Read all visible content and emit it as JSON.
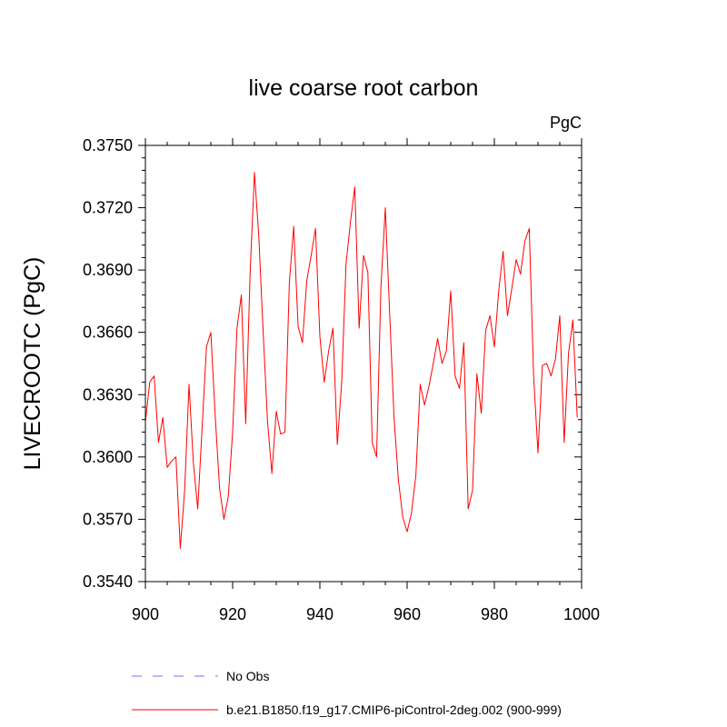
{
  "chart_data": {
    "type": "line",
    "title": "live coarse root carbon",
    "units": "PgC",
    "ylabel": "LIVECROOTC  (PgC)",
    "xlabel": "",
    "xlim": [
      900,
      1000
    ],
    "ylim": [
      0.354,
      0.375
    ],
    "x_ticks": [
      900,
      920,
      940,
      960,
      980,
      1000
    ],
    "x_tick_labels": [
      "900",
      "920",
      "940",
      "960",
      "980",
      "1000"
    ],
    "y_ticks": [
      0.354,
      0.357,
      0.36,
      0.363,
      0.366,
      0.369,
      0.372,
      0.375
    ],
    "y_tick_labels": [
      "0.3540",
      "0.3570",
      "0.3600",
      "0.3630",
      "0.3660",
      "0.3690",
      "0.3720",
      "0.3750"
    ],
    "legend": [
      {
        "label": "No Obs",
        "color": "#7070ff",
        "style": "dashed"
      },
      {
        "label": "b.e21.B1850.f19_g17.CMIP6-piControl-2deg.002 (900-999)",
        "color": "#ff0000",
        "style": "solid"
      }
    ],
    "series": [
      {
        "name": "b.e21.B1850.f19_g17.CMIP6-piControl-2deg.002 (900-999)",
        "color": "#ff0000",
        "x": [
          900,
          901,
          902,
          903,
          904,
          905,
          906,
          907,
          908,
          909,
          910,
          911,
          912,
          913,
          914,
          915,
          916,
          917,
          918,
          919,
          920,
          921,
          922,
          923,
          924,
          925,
          926,
          927,
          928,
          929,
          930,
          931,
          932,
          933,
          934,
          935,
          936,
          937,
          938,
          939,
          940,
          941,
          942,
          943,
          944,
          945,
          946,
          947,
          948,
          949,
          950,
          951,
          952,
          953,
          954,
          955,
          956,
          957,
          958,
          959,
          960,
          961,
          962,
          963,
          964,
          965,
          966,
          967,
          968,
          969,
          970,
          971,
          972,
          973,
          974,
          975,
          976,
          977,
          978,
          979,
          980,
          981,
          982,
          983,
          984,
          985,
          986,
          987,
          988,
          989,
          990,
          991,
          992,
          993,
          994,
          995,
          996,
          997,
          998,
          999
        ],
        "values": [
          0.3617,
          0.3636,
          0.3639,
          0.3607,
          0.3619,
          0.3595,
          0.3598,
          0.36,
          0.3556,
          0.3584,
          0.3635,
          0.3597,
          0.3575,
          0.3614,
          0.3653,
          0.366,
          0.362,
          0.3585,
          0.357,
          0.3581,
          0.3612,
          0.3662,
          0.3678,
          0.3616,
          0.3688,
          0.3737,
          0.3706,
          0.366,
          0.3617,
          0.3592,
          0.3622,
          0.3611,
          0.3612,
          0.3684,
          0.3711,
          0.3663,
          0.3655,
          0.3685,
          0.3697,
          0.371,
          0.3658,
          0.3636,
          0.3651,
          0.3662,
          0.3606,
          0.3636,
          0.3693,
          0.3713,
          0.373,
          0.3662,
          0.3697,
          0.3689,
          0.3607,
          0.36,
          0.3682,
          0.372,
          0.3669,
          0.3619,
          0.3589,
          0.3571,
          0.3564,
          0.3573,
          0.3591,
          0.3635,
          0.3625,
          0.3634,
          0.3645,
          0.3657,
          0.3645,
          0.3651,
          0.368,
          0.3639,
          0.3633,
          0.3655,
          0.3575,
          0.3584,
          0.364,
          0.3621,
          0.3661,
          0.3668,
          0.3653,
          0.368,
          0.3699,
          0.3668,
          0.3681,
          0.3695,
          0.3688,
          0.3704,
          0.371,
          0.3639,
          0.3602,
          0.3644,
          0.3645,
          0.3639,
          0.3647,
          0.3668,
          0.3607,
          0.365,
          0.3666,
          0.3619
        ]
      }
    ]
  }
}
